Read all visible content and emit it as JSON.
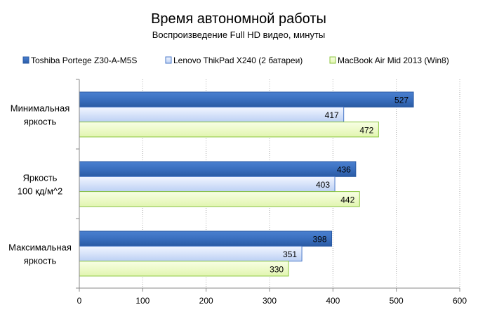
{
  "chart_data": {
    "type": "bar",
    "orientation": "horizontal",
    "title": "Время автономной работы",
    "subtitle": "Воспроизведение  Full HD видео, минуты",
    "categories": [
      "Минимальная яркость",
      "Яркость 100 кд/м^2",
      "Максимальная яркость"
    ],
    "series": [
      {
        "name": "Toshiba Portege Z30-A-M5S",
        "values": [
          527,
          436,
          398
        ],
        "color": "#3a6fbf"
      },
      {
        "name": "Lenovo ThikPad  X240 (2 батареи)",
        "values": [
          417,
          403,
          351
        ],
        "color": "#c9d9f7"
      },
      {
        "name": "MacBook Air Mid 2013 (Win8)",
        "values": [
          472,
          442,
          330
        ],
        "color": "#eefac8"
      }
    ],
    "xlim": [
      0,
      600
    ],
    "xticks": [
      0,
      100,
      200,
      300,
      400,
      500,
      600
    ],
    "grid": true,
    "legend": "top",
    "data_labels": true
  }
}
